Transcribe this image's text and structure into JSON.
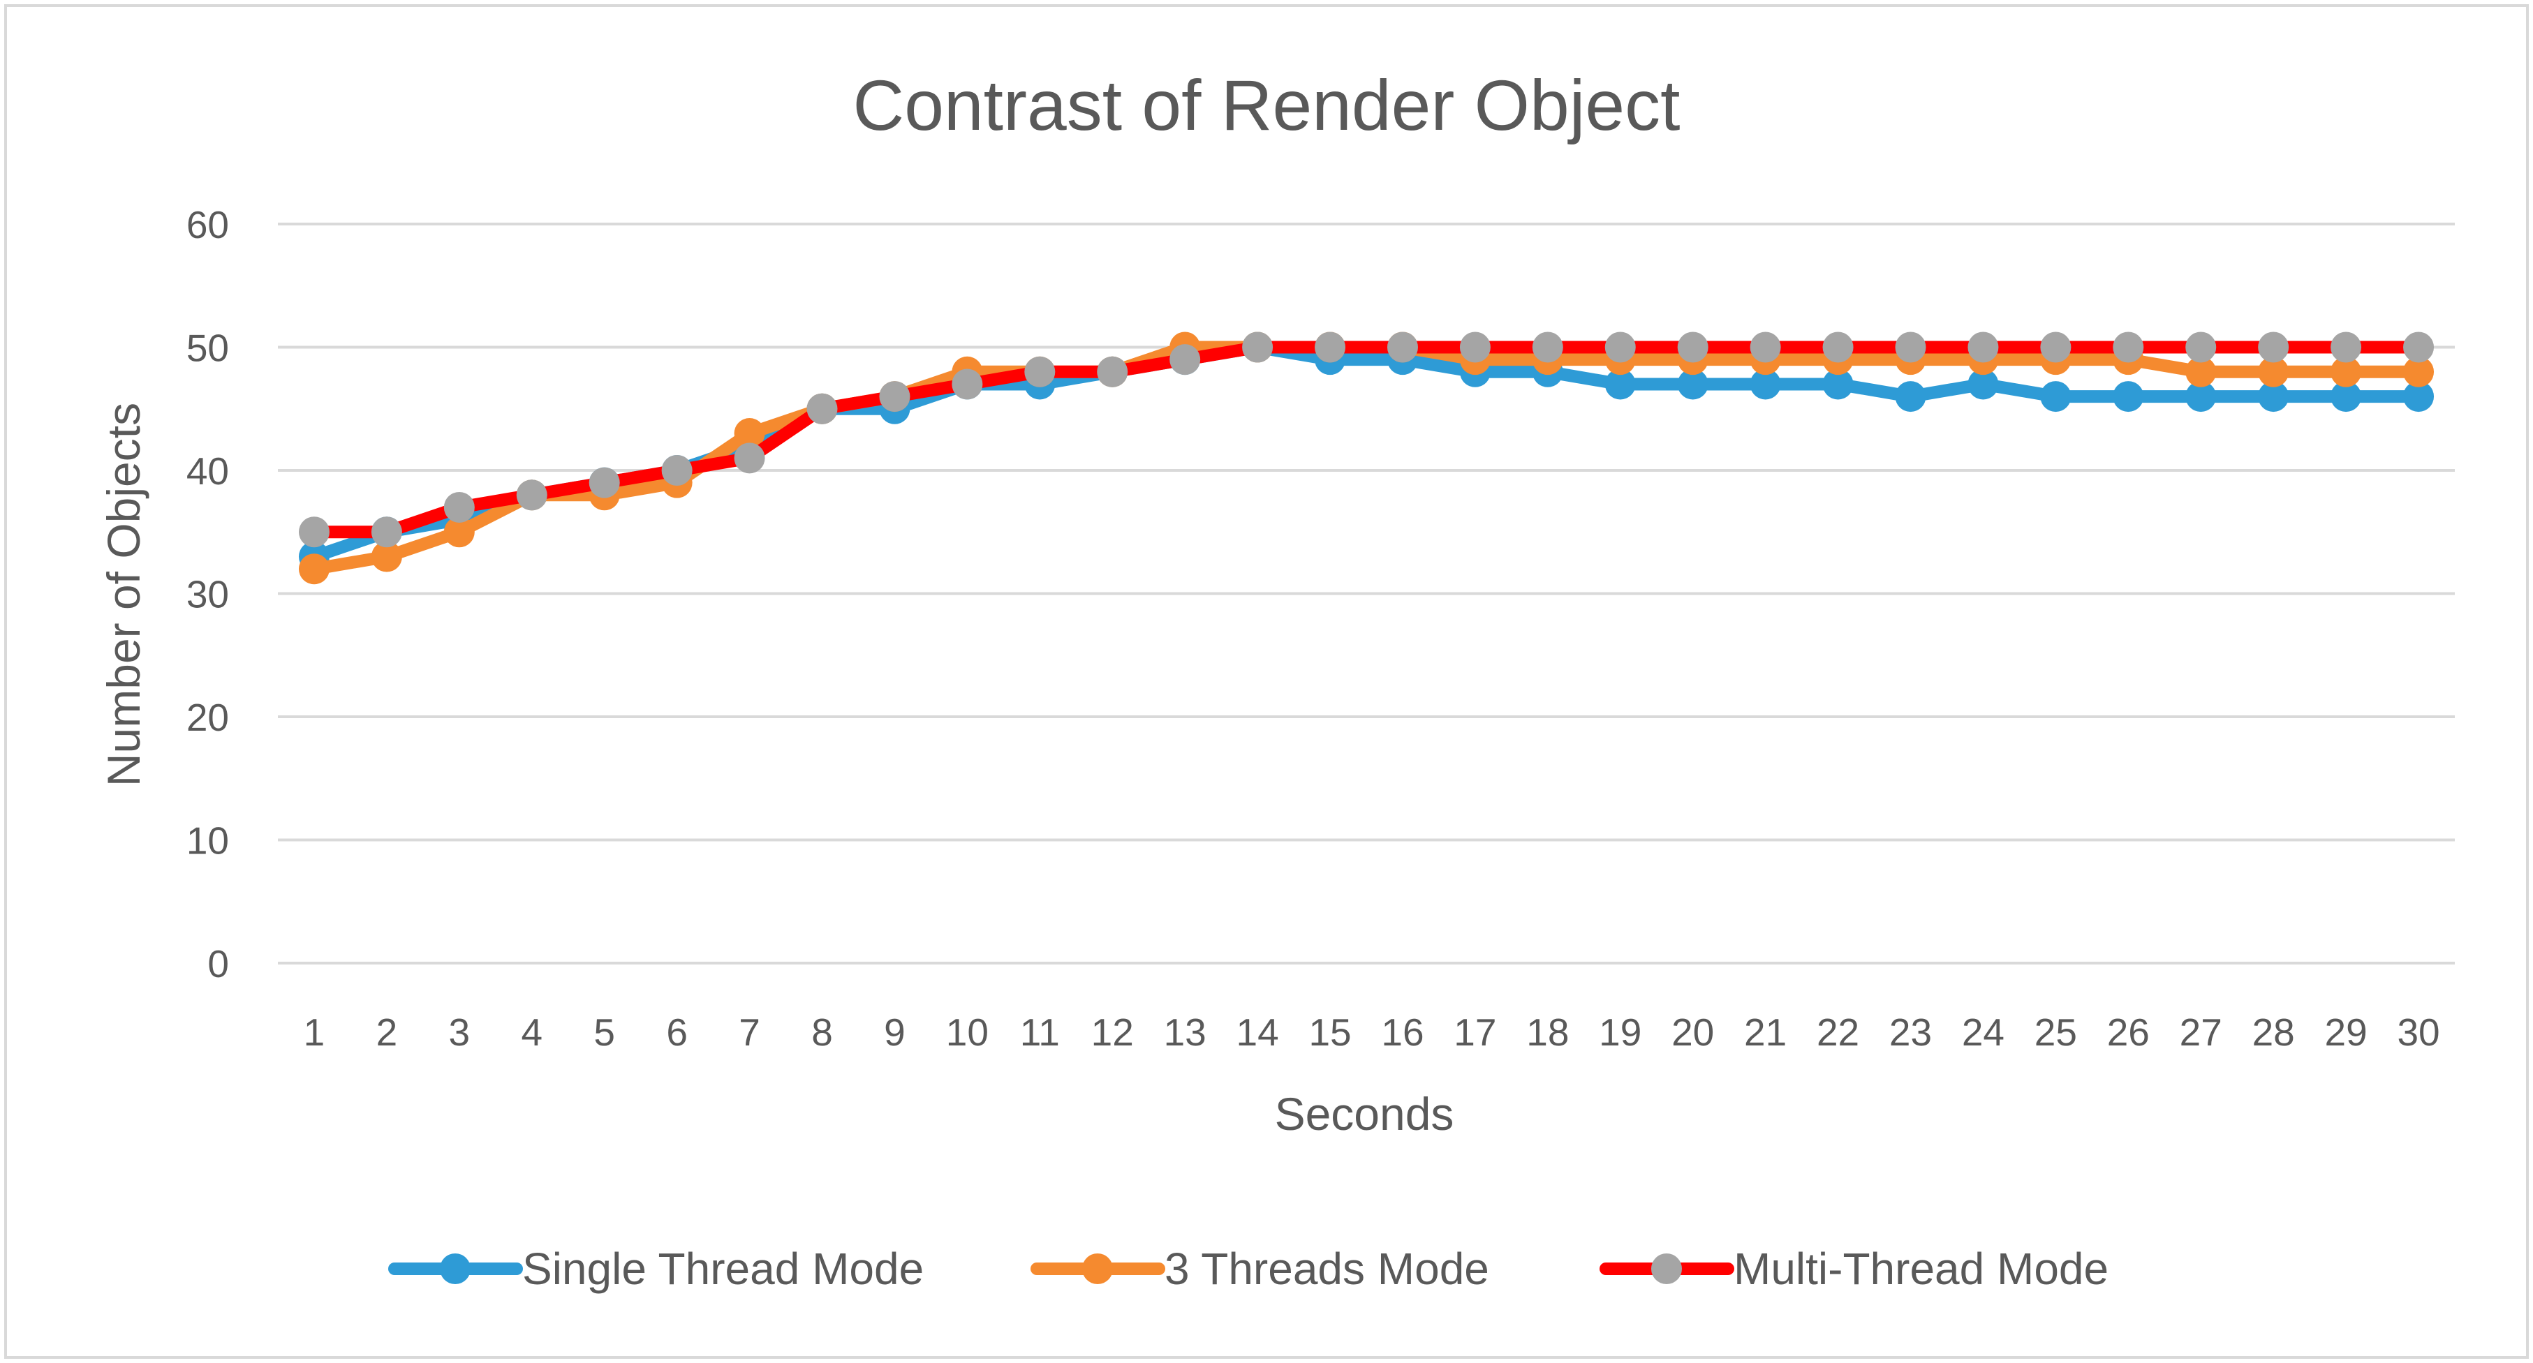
{
  "chart_data": {
    "type": "line",
    "title": "Contrast of Render Object",
    "xlabel": "Seconds",
    "ylabel": "Number of Objects",
    "ylim": [
      0,
      60
    ],
    "yticks": [
      0,
      10,
      20,
      30,
      40,
      50,
      60
    ],
    "grid": true,
    "legend_position": "bottom",
    "categories": [
      "1",
      "2",
      "3",
      "4",
      "5",
      "6",
      "7",
      "8",
      "9",
      "10",
      "11",
      "12",
      "13",
      "14",
      "15",
      "16",
      "17",
      "18",
      "19",
      "20",
      "21",
      "22",
      "23",
      "24",
      "25",
      "26",
      "27",
      "28",
      "29",
      "30"
    ],
    "series": [
      {
        "name": "Single Thread Mode",
        "line_color": "#2E9BD6",
        "marker_color": "#2E9BD6",
        "values": [
          33,
          35,
          36,
          38,
          39,
          40,
          42,
          45,
          45,
          47,
          47,
          48,
          49,
          50,
          49,
          49,
          48,
          48,
          47,
          47,
          47,
          47,
          46,
          47,
          46,
          46,
          46,
          46,
          46,
          46
        ]
      },
      {
        "name": "3 Threads Mode",
        "line_color": "#F58A2F",
        "marker_color": "#F58A2F",
        "values": [
          32,
          33,
          35,
          38,
          38,
          39,
          43,
          45,
          46,
          48,
          48,
          48,
          50,
          50,
          50,
          50,
          49,
          49,
          49,
          49,
          49,
          49,
          49,
          49,
          49,
          49,
          48,
          48,
          48,
          48
        ]
      },
      {
        "name": "Multi-Thread Mode",
        "line_color": "#FF0000",
        "marker_color": "#A5A5A5",
        "values": [
          35,
          35,
          37,
          38,
          39,
          40,
          41,
          45,
          46,
          47,
          48,
          48,
          49,
          50,
          50,
          50,
          50,
          50,
          50,
          50,
          50,
          50,
          50,
          50,
          50,
          50,
          50,
          50,
          50,
          50
        ]
      }
    ]
  }
}
